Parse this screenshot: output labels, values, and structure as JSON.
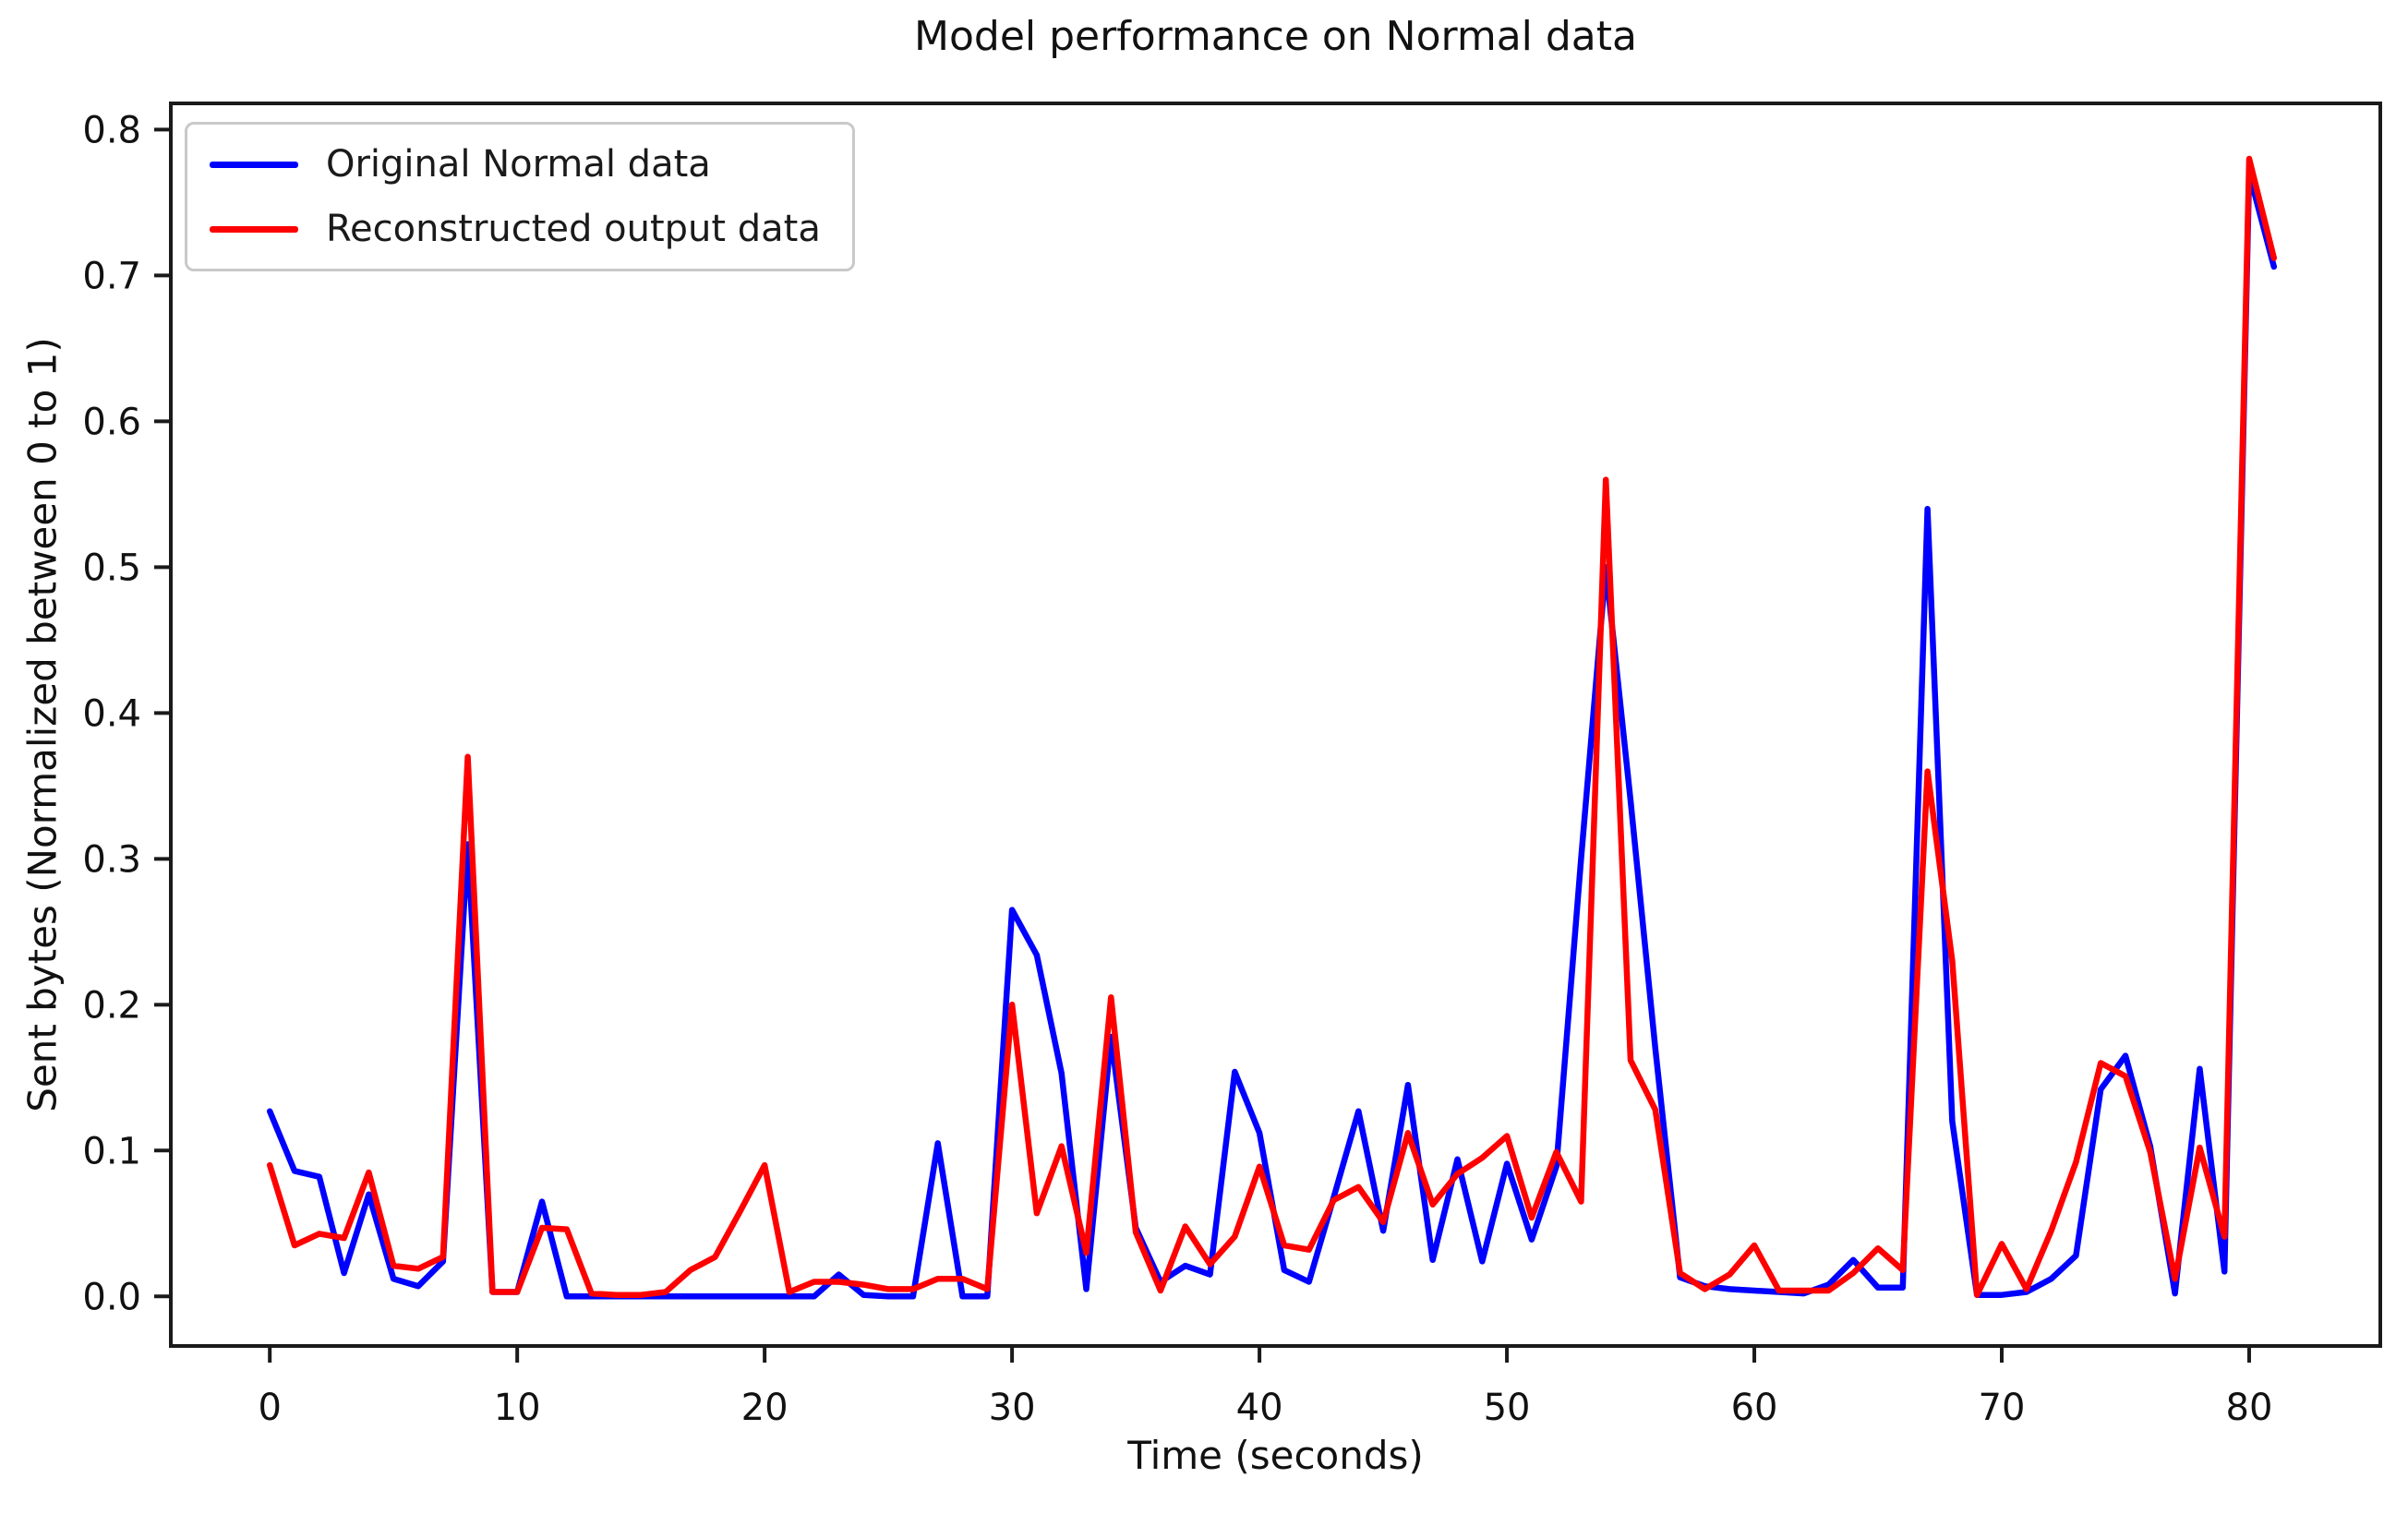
{
  "figure": {
    "background_color": "#ffffff",
    "text_color": "#111111",
    "spine_color": "#1a1a1a"
  },
  "chart_data": {
    "type": "line",
    "title": "Model performance on Normal data",
    "xlabel": "Time (seconds)",
    "ylabel": "Sent bytes (Normalized between 0 to 1)",
    "grid": false,
    "legend_position": "upper left",
    "xlim": [
      -4.0,
      85.3
    ],
    "ylim": [
      -0.034,
      0.818
    ],
    "x_ticks": [
      0,
      10,
      20,
      30,
      40,
      50,
      60,
      70,
      80
    ],
    "y_ticks": [
      0.0,
      0.1,
      0.2,
      0.3,
      0.4,
      0.5,
      0.6,
      0.7,
      0.8
    ],
    "x": [
      0,
      1,
      2,
      3,
      4,
      5,
      6,
      7,
      8,
      9,
      10,
      11,
      12,
      13,
      14,
      15,
      16,
      17,
      18,
      19,
      20,
      21,
      22,
      23,
      24,
      25,
      26,
      27,
      28,
      29,
      30,
      31,
      32,
      33,
      34,
      35,
      36,
      37,
      38,
      39,
      40,
      41,
      42,
      43,
      44,
      45,
      46,
      47,
      48,
      49,
      50,
      51,
      52,
      53,
      54,
      55,
      56,
      57,
      58,
      59,
      60,
      61,
      62,
      63,
      64,
      65,
      66,
      67,
      68,
      69,
      70,
      71,
      72,
      73,
      74,
      75,
      76,
      77,
      78,
      79,
      80,
      81
    ],
    "series": [
      {
        "name": "Original Normal data",
        "color": "#0000ff",
        "values": [
          0.127,
          0.086,
          0.082,
          0.016,
          0.07,
          0.012,
          0.007,
          0.024,
          0.31,
          0.003,
          0.003,
          0.065,
          0.0,
          0.0,
          0.0,
          0.0,
          0.0,
          0.0,
          0.0,
          0.0,
          0.0,
          0.0,
          0.0,
          0.015,
          0.001,
          0.0,
          0.0,
          0.105,
          0.0,
          0.0,
          0.265,
          0.234,
          0.153,
          0.005,
          0.178,
          0.047,
          0.01,
          0.021,
          0.015,
          0.154,
          0.112,
          0.018,
          0.01,
          0.068,
          0.127,
          0.045,
          0.145,
          0.025,
          0.094,
          0.024,
          0.091,
          0.039,
          0.089,
          0.3,
          0.5,
          0.34,
          0.17,
          0.013,
          0.007,
          0.005,
          0.004,
          0.003,
          0.002,
          0.008,
          0.025,
          0.006,
          0.006,
          0.54,
          0.12,
          0.001,
          0.001,
          0.003,
          0.012,
          0.028,
          0.142,
          0.165,
          0.103,
          0.002,
          0.156,
          0.017,
          0.77,
          0.706
        ]
      },
      {
        "name": "Reconstructed output data",
        "color": "#ff0000",
        "values": [
          0.09,
          0.035,
          0.043,
          0.04,
          0.085,
          0.021,
          0.019,
          0.027,
          0.37,
          0.003,
          0.003,
          0.047,
          0.046,
          0.002,
          0.001,
          0.001,
          0.003,
          0.018,
          0.027,
          0.058,
          0.09,
          0.003,
          0.01,
          0.01,
          0.008,
          0.005,
          0.005,
          0.012,
          0.012,
          0.005,
          0.2,
          0.057,
          0.103,
          0.03,
          0.205,
          0.044,
          0.004,
          0.048,
          0.022,
          0.041,
          0.089,
          0.035,
          0.032,
          0.066,
          0.075,
          0.051,
          0.112,
          0.063,
          0.084,
          0.095,
          0.11,
          0.054,
          0.099,
          0.065,
          0.56,
          0.162,
          0.128,
          0.016,
          0.005,
          0.015,
          0.035,
          0.004,
          0.004,
          0.004,
          0.016,
          0.033,
          0.018,
          0.36,
          0.23,
          0.001,
          0.036,
          0.005,
          0.045,
          0.092,
          0.16,
          0.151,
          0.099,
          0.012,
          0.102,
          0.041,
          0.78,
          0.712
        ]
      }
    ]
  }
}
